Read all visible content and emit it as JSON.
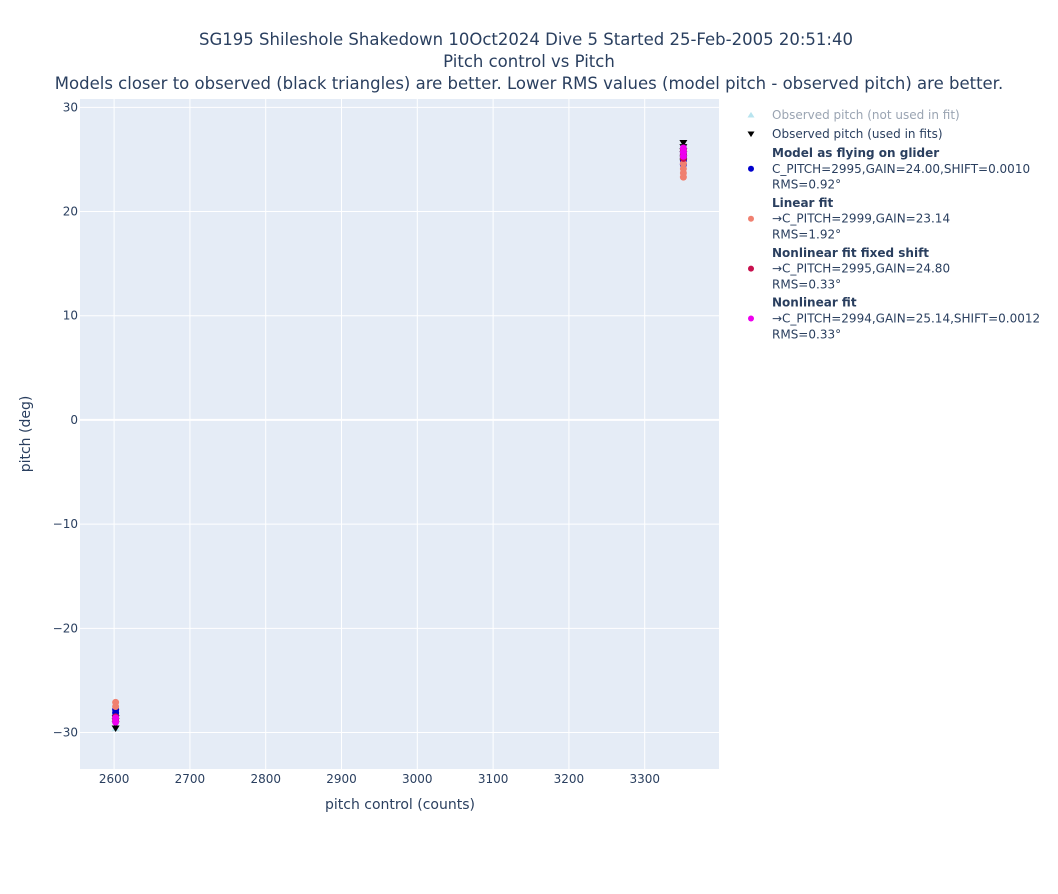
{
  "chart_data": {
    "type": "scatter",
    "title_lines": [
      "SG195 Shileshole Shakedown 10Oct2024 Dive 5 Started 25-Feb-2005 20:51:40",
      "Pitch control vs Pitch",
      "Models closer to observed (black triangles) are better. Lower RMS values (model pitch - observed pitch) are better."
    ],
    "xlabel": "pitch control (counts)",
    "ylabel": "pitch (deg)",
    "xlim": [
      2555,
      3398
    ],
    "ylim": [
      -33.5,
      30.8
    ],
    "xticks": [
      2600,
      2700,
      2800,
      2900,
      3000,
      3100,
      3200,
      3300
    ],
    "yticks": [
      -30,
      -20,
      -10,
      0,
      10,
      20,
      30
    ],
    "grid": true,
    "legend_position": "right",
    "series": [
      {
        "name": "Observed pitch (not used in fit)",
        "lines": [],
        "marker": "triangle-up",
        "color": "#b8e4ef",
        "muted": true,
        "points": [
          [
            3351,
            26.5
          ],
          [
            2602,
            -29.6
          ]
        ]
      },
      {
        "name": "Observed pitch (used in fits)",
        "lines": [],
        "marker": "triangle-down",
        "color": "#000000",
        "points": [
          [
            3351,
            26.6
          ],
          [
            3351,
            26.2
          ],
          [
            3351,
            25.8
          ],
          [
            3351,
            25.5
          ],
          [
            3351,
            25.1
          ],
          [
            3351,
            24.8
          ],
          [
            2602,
            -28.6
          ],
          [
            2602,
            -28.9
          ],
          [
            2602,
            -29.2
          ],
          [
            2602,
            -29.6
          ]
        ]
      },
      {
        "name": "Model as flying on glider",
        "lines": [
          "C_PITCH=2995,GAIN=24.00,SHIFT=0.0010",
          "RMS=0.92°"
        ],
        "marker": "circle",
        "color": "#0000cc",
        "points": [
          [
            3351,
            24.5
          ],
          [
            3351,
            24.9
          ],
          [
            3351,
            25.2
          ],
          [
            3351,
            25.5
          ],
          [
            2602,
            -27.8
          ],
          [
            2602,
            -28.1
          ],
          [
            2602,
            -28.4
          ]
        ]
      },
      {
        "name": "Linear fit",
        "lines": [
          "→C_PITCH=2999,GAIN=23.14",
          "RMS=1.92°"
        ],
        "marker": "circle",
        "color": "#f08070",
        "points": [
          [
            3351,
            23.3
          ],
          [
            3351,
            23.7
          ],
          [
            3351,
            24.1
          ],
          [
            3351,
            24.6
          ],
          [
            2602,
            -27.1
          ],
          [
            2602,
            -27.5
          ]
        ]
      },
      {
        "name": "Nonlinear fit fixed shift",
        "lines": [
          "→C_PITCH=2995,GAIN=24.80",
          "RMS=0.33°"
        ],
        "marker": "circle",
        "color": "#c8104e",
        "points": [
          [
            3351,
            25.1
          ],
          [
            3351,
            25.5
          ],
          [
            3351,
            25.9
          ],
          [
            2602,
            -28.5
          ],
          [
            2602,
            -28.8
          ]
        ]
      },
      {
        "name": "Nonlinear fit",
        "lines": [
          "→C_PITCH=2994,GAIN=25.14,SHIFT=0.0012",
          "RMS=0.33°"
        ],
        "marker": "circle",
        "color": "#ee00ee",
        "points": [
          [
            3351,
            25.3
          ],
          [
            3351,
            25.7
          ],
          [
            3351,
            26.1
          ],
          [
            2602,
            -28.6
          ],
          [
            2602,
            -29.0
          ]
        ]
      }
    ]
  }
}
